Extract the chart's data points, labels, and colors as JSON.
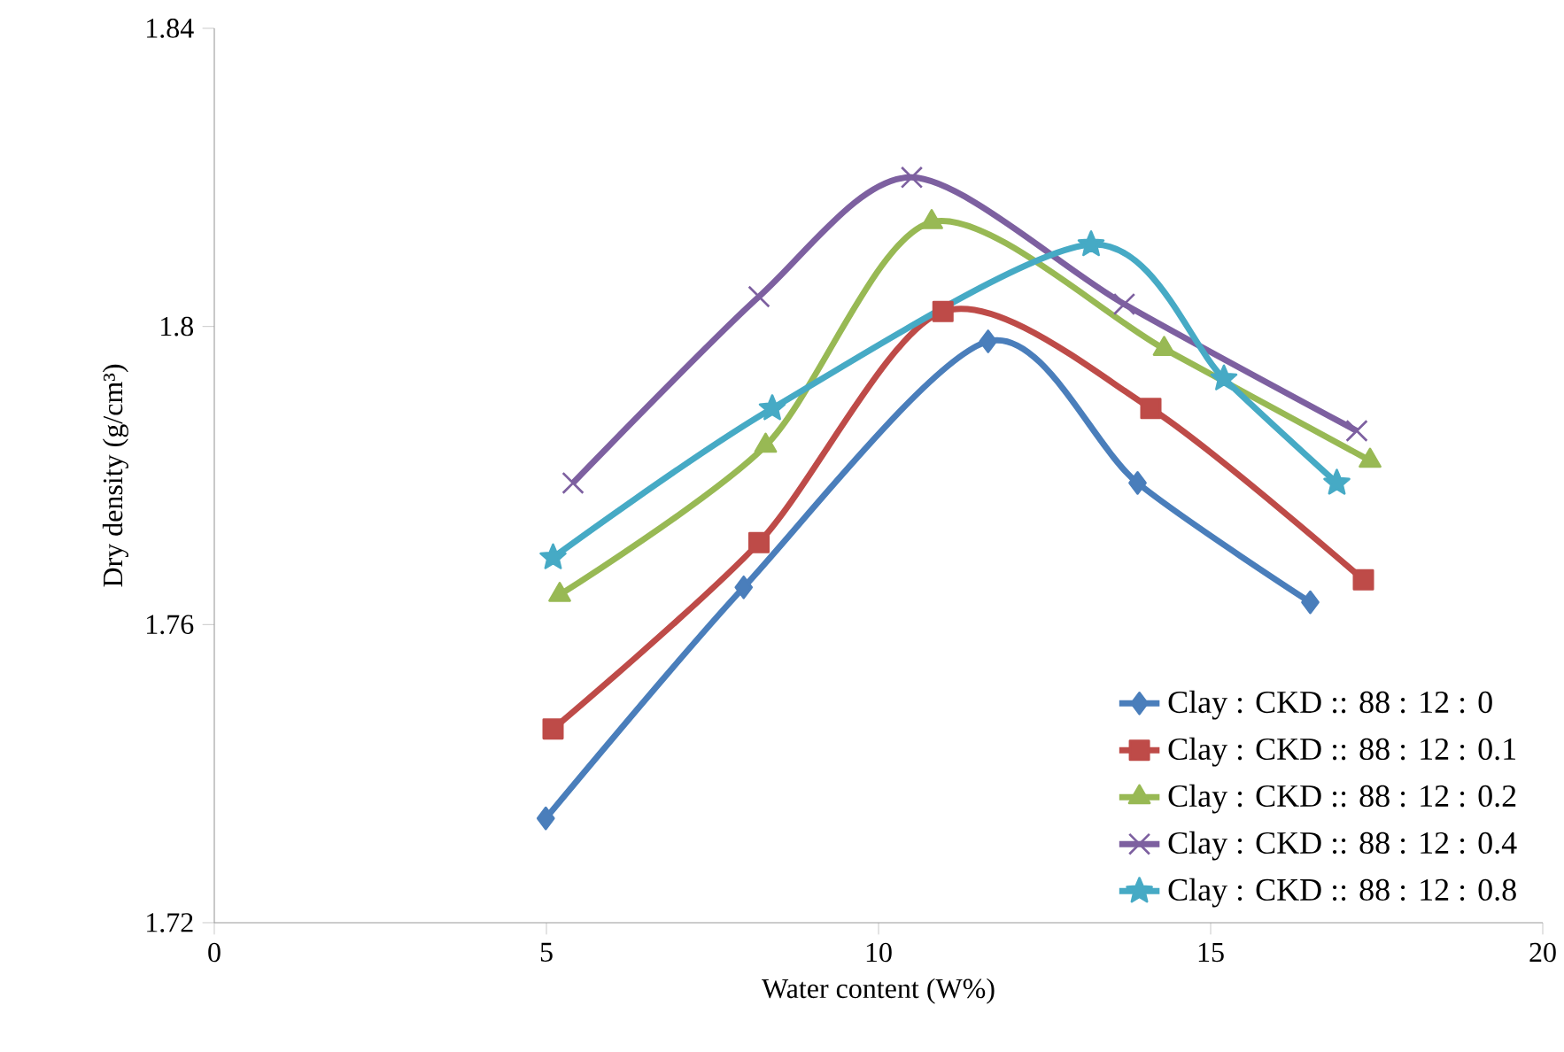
{
  "chart_data": {
    "type": "line",
    "xlabel": "Water content (W%)",
    "ylabel": "Dry density (g/cm³)",
    "xlim": [
      0,
      20
    ],
    "xticks": [
      0,
      5,
      10,
      15,
      20
    ],
    "ylim": [
      1.72,
      1.84
    ],
    "yticks": [
      1.72,
      1.76,
      1.8,
      1.84
    ],
    "grid": false,
    "legend": "bottom right",
    "line_style": "solid",
    "series": [
      {
        "name": "Clay : CKD :: 88 : 12 : 0",
        "color": "#4a7ebb",
        "marker": "diamond",
        "x": [
          4.99,
          7.97,
          11.65,
          13.9,
          16.5
        ],
        "values": [
          1.734,
          1.765,
          1.798,
          1.779,
          1.763
        ]
      },
      {
        "name": "Clay : CKD :: 88 : 12 : 0.1",
        "color": "#be4b48",
        "marker": "square",
        "x": [
          5.1,
          8.2,
          10.97,
          14.1,
          17.3
        ],
        "values": [
          1.746,
          1.771,
          1.802,
          1.789,
          1.766
        ]
      },
      {
        "name": "Clay : CKD :: 88 : 12 : 0.2",
        "color": "#98b954",
        "marker": "triangle",
        "x": [
          5.2,
          8.3,
          10.8,
          14.3,
          17.4
        ],
        "values": [
          1.764,
          1.784,
          1.814,
          1.797,
          1.782
        ]
      },
      {
        "name": "Clay : CKD :: 88 : 12 : 0.4",
        "color": "#7d60a0",
        "marker": "cross",
        "x": [
          5.4,
          8.2,
          10.5,
          13.7,
          17.2
        ],
        "values": [
          1.779,
          1.804,
          1.82,
          1.803,
          1.786
        ]
      },
      {
        "name": "Clay : CKD :: 88 : 12 : 0.8",
        "color": "#46aac5",
        "marker": "star",
        "x": [
          5.1,
          8.4,
          13.2,
          15.2,
          16.9
        ],
        "values": [
          1.769,
          1.789,
          1.811,
          1.793,
          1.779
        ]
      }
    ]
  }
}
